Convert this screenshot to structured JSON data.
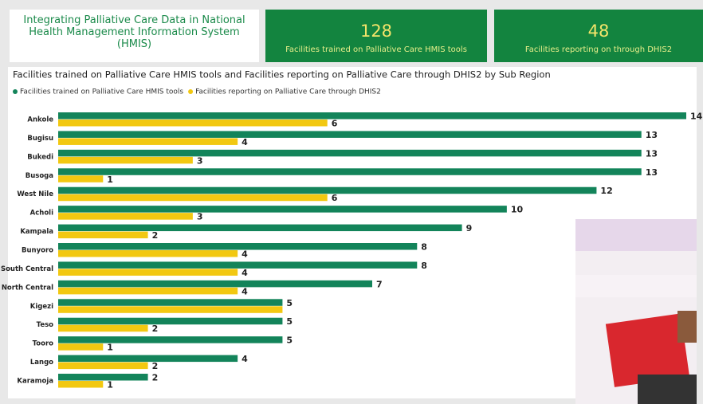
{
  "header": {
    "title": "Integrating Palliative Care Data in National Health Management Information System (HMIS)"
  },
  "kpis": [
    {
      "value": 128,
      "label": "Facilities trained on Palliative Care HMIS tools"
    },
    {
      "value": 48,
      "label": "Facilities reporting on through DHIS2"
    }
  ],
  "chart_data": {
    "type": "bar",
    "orientation": "horizontal",
    "title": "Facilities trained on Palliative Care HMIS tools and Facilities reporting on Palliative Care through DHIS2 by Sub Region",
    "categories": [
      "Ankole",
      "Bugisu",
      "Bukedi",
      "Busoga",
      "West Nile",
      "Acholi",
      "Kampala",
      "Bunyoro",
      "South Central",
      "North Central",
      "Kigezi",
      "Teso",
      "Tooro",
      "Lango",
      "Karamoja"
    ],
    "series": [
      {
        "name": "Facilities trained on Palliative Care HMIS tools",
        "color": "#13845a",
        "values": [
          14,
          13,
          13,
          13,
          12,
          10,
          9,
          8,
          8,
          7,
          5,
          5,
          5,
          4,
          2
        ]
      },
      {
        "name": "Facilities reporting on Palliative Care through DHIS2",
        "color": "#f2c811",
        "values": [
          6,
          4,
          3,
          1,
          6,
          3,
          2,
          4,
          4,
          4,
          5,
          2,
          1,
          2,
          1
        ],
        "value_labels": [
          "6",
          "4",
          "3",
          "1",
          "6",
          "3",
          "2",
          "4",
          "4",
          "4",
          null,
          "2",
          "1",
          "2",
          "1"
        ]
      }
    ],
    "legend": "top-left"
  }
}
